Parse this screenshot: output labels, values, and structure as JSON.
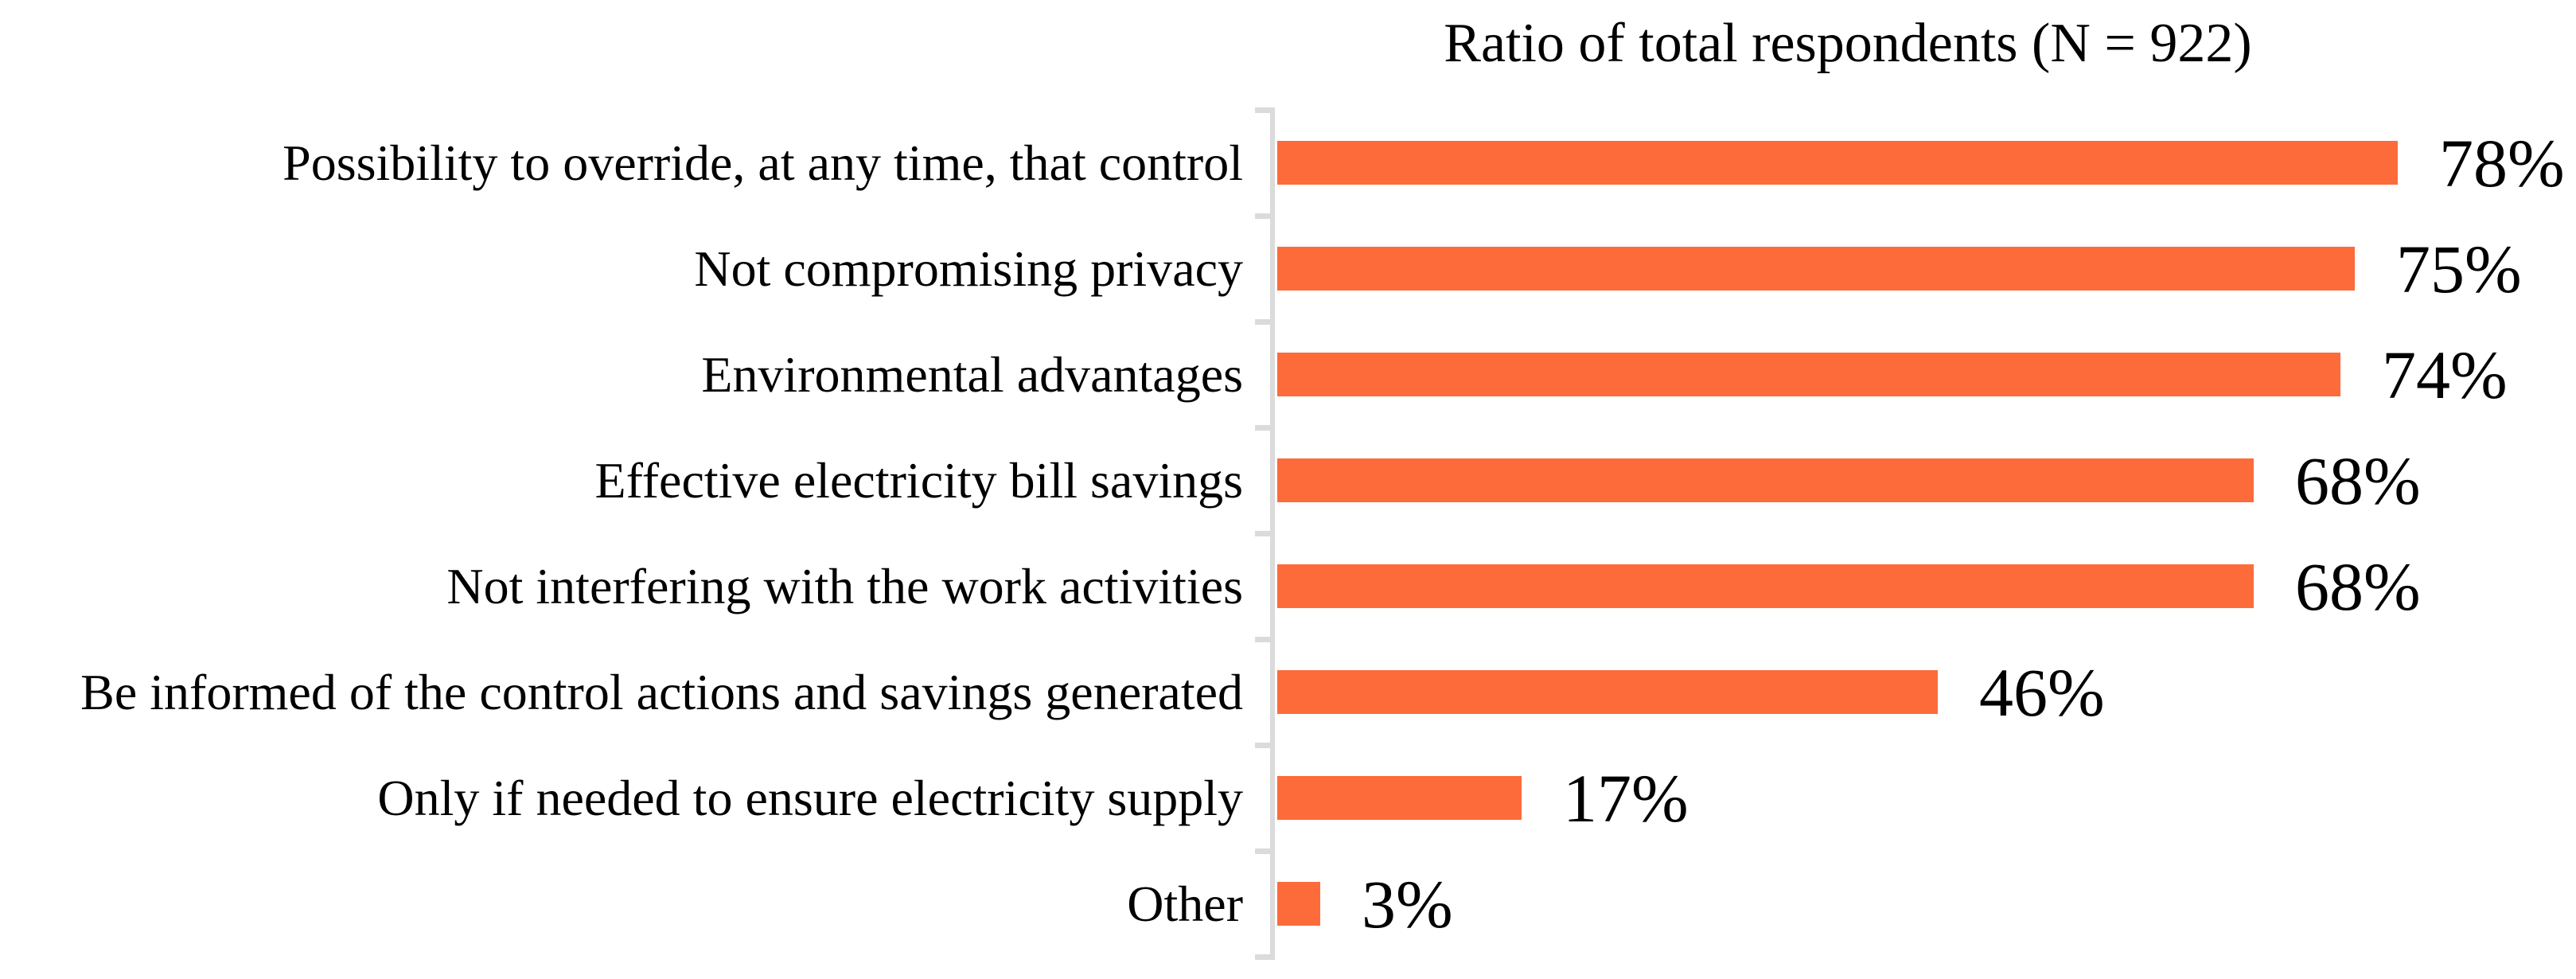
{
  "page": {
    "background": "#FFFFFF"
  },
  "chart_data": {
    "type": "bar",
    "orientation": "horizontal",
    "title": "Ratio of total respondents (N = 922)",
    "categories": [
      "Possibility to override, at any time, that control",
      "Not compromising privacy",
      "Environmental advantages",
      "Effective electricity bill savings",
      "Not interfering with the work activities",
      "Be informed of the control actions and savings generated",
      "Only if needed to ensure electricity supply",
      "Other"
    ],
    "values": [
      78,
      75,
      74,
      68,
      68,
      46,
      17,
      3
    ],
    "value_labels": [
      "78%",
      "75%",
      "74%",
      "68%",
      "68%",
      "46%",
      "17%",
      "3%"
    ],
    "unit": "%",
    "xlim": [
      0,
      90
    ],
    "grid": false,
    "legend": false,
    "data_labels": "outside-end",
    "bar_color": "#FD6B3B",
    "axis_color": "#DBDBDB",
    "text_color": "#000000"
  }
}
